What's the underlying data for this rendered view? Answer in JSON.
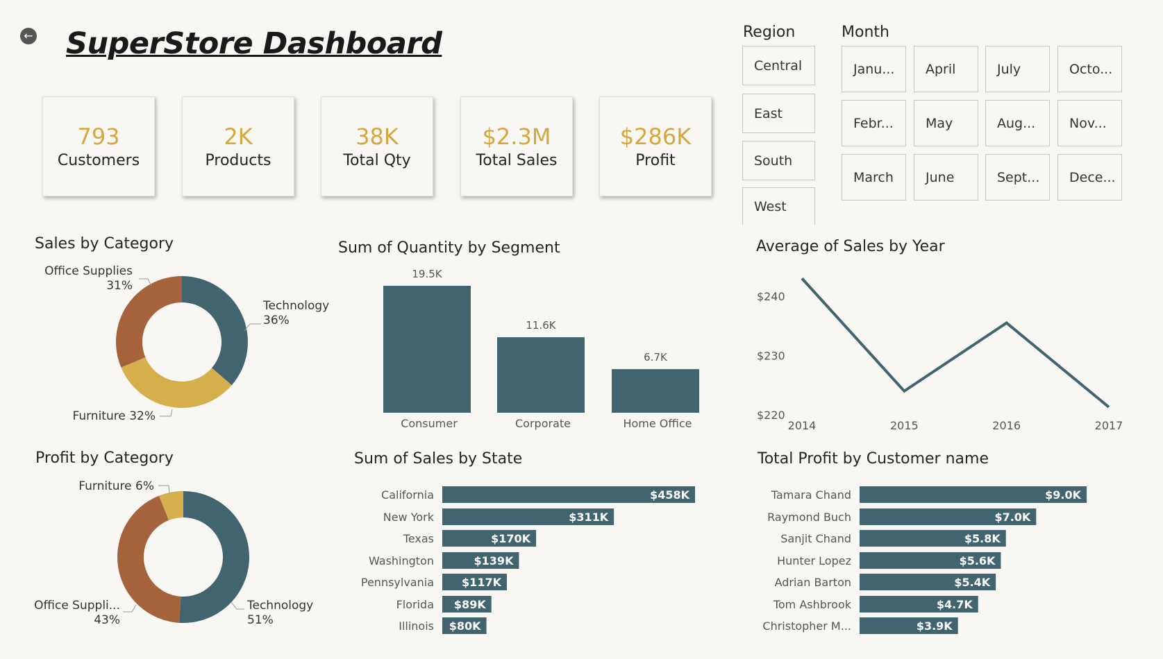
{
  "header": {
    "title": "SuperStore Dashboard",
    "back_icon": "back-arrow-icon"
  },
  "kpis": [
    {
      "value": "793",
      "label": "Customers"
    },
    {
      "value": "2K",
      "label": "Products"
    },
    {
      "value": "38K",
      "label": "Total Qty"
    },
    {
      "value": "$2.3M",
      "label": "Total Sales"
    },
    {
      "value": "$286K",
      "label": "Profit"
    }
  ],
  "region": {
    "label": "Region",
    "options": [
      "Central",
      "East",
      "South",
      "West"
    ]
  },
  "month": {
    "label": "Month",
    "options": [
      "Janu...",
      "April",
      "July",
      "Octo...",
      "Febr...",
      "May",
      "Aug...",
      "Nov...",
      "March",
      "June",
      "Sept...",
      "Dece..."
    ]
  },
  "colors": {
    "teal": "#41646e",
    "gold": "#d4af4c",
    "brown": "#a6623a",
    "kpi": "#d4a73f",
    "background": "#f8f7f4"
  },
  "chart_data": [
    {
      "type": "pie",
      "title": "Sales by Category",
      "donut": true,
      "slices": [
        {
          "label": "Technology",
          "value": 36,
          "text": "Technology",
          "pct": "36%",
          "color": "#41646e"
        },
        {
          "label": "Furniture",
          "value": 32,
          "text": "Furniture 32%",
          "pct": "",
          "color": "#d4af4c"
        },
        {
          "label": "Office Supplies",
          "value": 31,
          "text": "Office Supplies",
          "pct": "31%",
          "color": "#a6623a"
        }
      ]
    },
    {
      "type": "bar",
      "title": "Sum of Quantity by Segment",
      "categories": [
        "Consumer",
        "Corporate",
        "Home Office"
      ],
      "values": [
        19.5,
        11.6,
        6.7
      ],
      "data_labels": [
        "19.5K",
        "11.6K",
        "6.7K"
      ],
      "unit": "K"
    },
    {
      "type": "line",
      "title": "Average of Sales by Year",
      "x": [
        "2014",
        "2015",
        "2016",
        "2017"
      ],
      "y": [
        243,
        224,
        235.5,
        221.3
      ],
      "yticks": [
        "$220",
        "$230",
        "$240"
      ],
      "ytick_values": [
        220,
        230,
        240
      ],
      "ylim": [
        220,
        244
      ]
    },
    {
      "type": "pie",
      "title": "Profit by Category",
      "donut": true,
      "slices": [
        {
          "label": "Technology",
          "value": 51,
          "text": "Technology",
          "pct": "51%",
          "color": "#41646e"
        },
        {
          "label": "Office Supplies",
          "value": 43,
          "text": "Office Suppli...",
          "pct": "43%",
          "color": "#a6623a"
        },
        {
          "label": "Furniture",
          "value": 6,
          "text": "Furniture 6%",
          "pct": "",
          "color": "#d4af4c"
        }
      ]
    },
    {
      "type": "bar",
      "orientation": "horizontal",
      "title": "Sum of Sales by State",
      "categories": [
        "California",
        "New York",
        "Texas",
        "Washington",
        "Pennsylvania",
        "Florida",
        "Illinois"
      ],
      "values": [
        458,
        311,
        170,
        139,
        117,
        89,
        80
      ],
      "data_labels": [
        "$458K",
        "$311K",
        "$170K",
        "$139K",
        "$117K",
        "$89K",
        "$80K"
      ]
    },
    {
      "type": "bar",
      "orientation": "horizontal",
      "title": "Total Profit by Customer name",
      "categories": [
        "Tamara Chand",
        "Raymond Buch",
        "Sanjit Chand",
        "Hunter Lopez",
        "Adrian Barton",
        "Tom Ashbrook",
        "Christopher M..."
      ],
      "values": [
        9.0,
        7.0,
        5.8,
        5.6,
        5.4,
        4.7,
        3.9
      ],
      "data_labels": [
        "$9.0K",
        "$7.0K",
        "$5.8K",
        "$5.6K",
        "$5.4K",
        "$4.7K",
        "$3.9K"
      ]
    }
  ]
}
